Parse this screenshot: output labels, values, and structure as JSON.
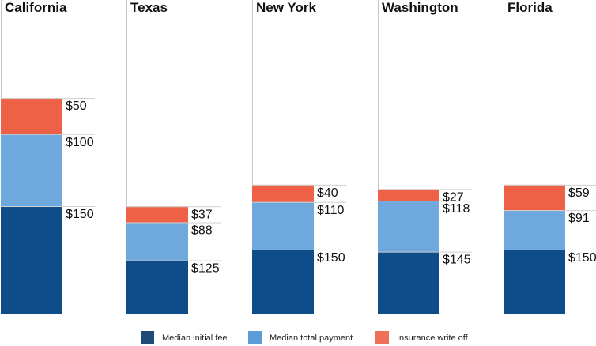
{
  "chart_data": {
    "type": "bar",
    "stacked": true,
    "categories": [
      "California",
      "Texas",
      "New York",
      "Washington",
      "Florida"
    ],
    "series": [
      {
        "name": "Median initial fee",
        "values": [
          150,
          125,
          150,
          145,
          150
        ],
        "labels": [
          "$150",
          "$125",
          "$150",
          "$145",
          "$150"
        ],
        "color": "#0f4c8a"
      },
      {
        "name": "Median total payment",
        "values": [
          100,
          88,
          110,
          118,
          91
        ],
        "labels": [
          "$100",
          "$88",
          "$110",
          "$118",
          "$91"
        ],
        "color": "#6ea8dd"
      },
      {
        "name": "Insurance write off",
        "values": [
          50,
          37,
          40,
          27,
          59
        ],
        "labels": [
          "$50",
          "$37",
          "$40",
          "$27",
          "$59"
        ],
        "color": "#ef6146"
      }
    ],
    "legend_position": "bottom",
    "grid": false,
    "legend_colors": [
      "#1e4b78",
      "#5a9bd8",
      "#f07058"
    ]
  }
}
